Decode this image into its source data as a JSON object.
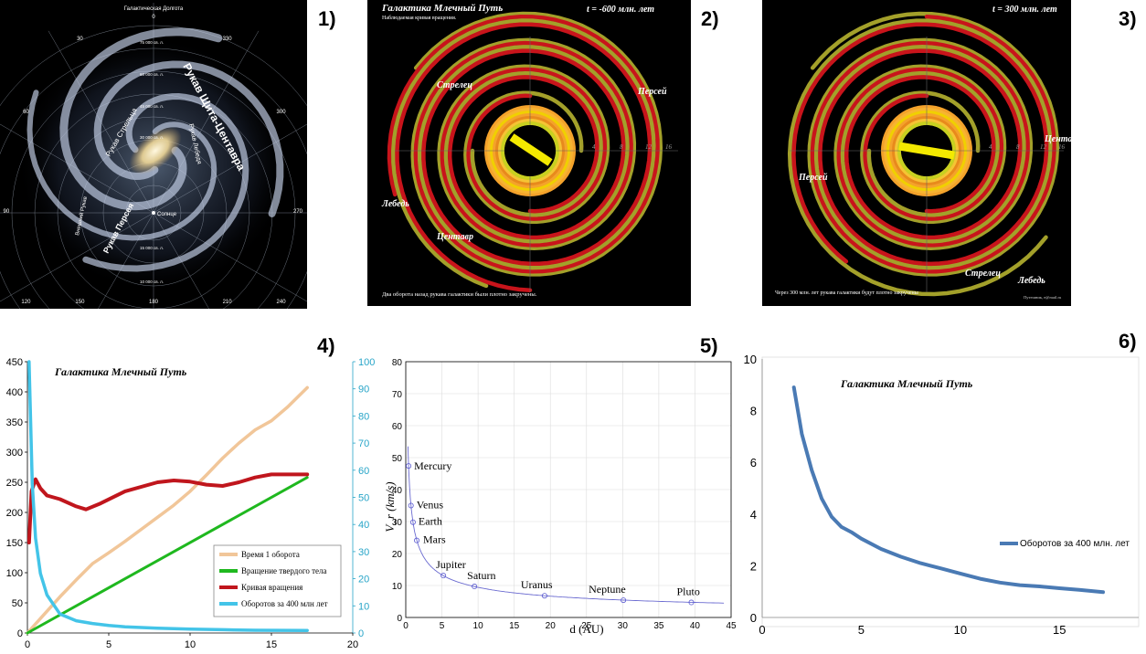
{
  "panel_numbers": [
    "1)",
    "2)",
    "3)",
    "4)",
    "5)",
    "6)"
  ],
  "panel1": {
    "title": "Галактическая Долгота",
    "longitudes": [
      "0",
      "30",
      "60",
      "90",
      "120",
      "150",
      "180",
      "210",
      "240",
      "270",
      "300",
      "330"
    ],
    "radii": [
      "75 000 св. л.",
      "60 000 св. л.",
      "45 000 св. л.",
      "30 000 св. л.",
      "15 000 св. л.",
      "10 000 св. л."
    ],
    "arms": [
      "Рукав Щита-Центавра",
      "Рукав Стрельца",
      "Рукав Лебедя",
      "Рукав Персея",
      "Внешний Рукав"
    ],
    "sun_label": "Солнце"
  },
  "panel2": {
    "title": "Галактика Млечный Путь",
    "subtitle": "Наблюдаемая кривая вращения.",
    "time": "t = -600 млн. лет",
    "labels": [
      "Стрелец",
      "Персей",
      "Лебедь",
      "Центавр"
    ],
    "caption": "Два оборота назад рукава галактики были плотно закручены.",
    "ticks": [
      "4",
      "8",
      "12",
      "16"
    ]
  },
  "panel3": {
    "time": "t = 300 млн. лет",
    "labels": [
      "Центавр",
      "Персей",
      "Стрелец",
      "Лебедь"
    ],
    "caption": "Через 300 млн. лет рукава галактики будут плотно закручены",
    "author": "Путешник, e@mail.ru",
    "ticks": [
      "4",
      "8",
      "12",
      "16"
    ]
  },
  "colors": {
    "olive": "#a3a02a",
    "red": "#c8141b",
    "orange": "#f4a22b",
    "yellow": "#f4ea00",
    "tan": "#f1c699",
    "green": "#1fb81f",
    "dark_red": "#c0161d",
    "cyan": "#43c4e8",
    "blue": "#4a7ab4",
    "axis_cyan": "#28a5c8"
  },
  "chart_data": [
    {
      "type": "line",
      "title": "Галактика Млечный Путь",
      "xlim": [
        0,
        20
      ],
      "ylim": [
        0,
        450
      ],
      "y2lim": [
        0,
        100
      ],
      "xticks": [
        "0",
        "5",
        "10",
        "15",
        "20"
      ],
      "yticks": [
        "0",
        "50",
        "100",
        "150",
        "200",
        "250",
        "300",
        "350",
        "400",
        "450"
      ],
      "y2ticks": [
        "0",
        "10",
        "20",
        "30",
        "40",
        "50",
        "60",
        "70",
        "80",
        "90",
        "100"
      ],
      "series": [
        {
          "name": "Время 1 оборота",
          "axis": "left",
          "x": [
            0,
            1,
            2,
            3,
            4,
            5,
            6,
            7,
            8,
            9,
            10,
            11,
            12,
            13,
            14,
            15,
            16,
            17.2
          ],
          "y": [
            0,
            30,
            60,
            88,
            115,
            133,
            152,
            172,
            192,
            212,
            235,
            262,
            290,
            315,
            337,
            352,
            375,
            407
          ]
        },
        {
          "name": "Вращение твердого тела",
          "axis": "left",
          "x": [
            0,
            17.2
          ],
          "y": [
            0,
            258
          ]
        },
        {
          "name": "Кривая вращения",
          "axis": "left",
          "x": [
            0.1,
            0.25,
            0.5,
            0.8,
            1.2,
            2,
            3,
            3.6,
            4.5,
            6,
            8,
            9,
            10,
            11,
            12,
            13,
            14,
            15,
            17.2
          ],
          "y": [
            150,
            235,
            255,
            240,
            228,
            222,
            210,
            205,
            215,
            235,
            250,
            253,
            251,
            246,
            244,
            250,
            258,
            263,
            263
          ]
        },
        {
          "name": "Оборотов за 400 млн лет",
          "axis": "right",
          "x": [
            0.1,
            0.3,
            0.5,
            0.8,
            1.2,
            2,
            3,
            4,
            5,
            6,
            8,
            10,
            12,
            14,
            17.2
          ],
          "y": [
            100,
            55,
            35,
            22,
            14,
            7,
            4.5,
            3.5,
            2.8,
            2.3,
            1.8,
            1.4,
            1.2,
            1.0,
            0.9
          ]
        }
      ]
    },
    {
      "type": "scatter",
      "xlabel": "d (AU)",
      "ylabel": "V_r (km/s)",
      "xlim": [
        0,
        45
      ],
      "ylim": [
        0,
        80
      ],
      "xticks": [
        "0",
        "5",
        "10",
        "15",
        "20",
        "25",
        "30",
        "35",
        "40",
        "45"
      ],
      "yticks": [
        "0",
        "10",
        "20",
        "30",
        "40",
        "50",
        "60",
        "70",
        "80"
      ],
      "points": [
        {
          "label": "Mercury",
          "x": 0.39,
          "y": 47.4
        },
        {
          "label": "Venus",
          "x": 0.72,
          "y": 35.0
        },
        {
          "label": "Earth",
          "x": 1.0,
          "y": 29.8
        },
        {
          "label": "Mars",
          "x": 1.52,
          "y": 24.1
        },
        {
          "label": "Jupiter",
          "x": 5.2,
          "y": 13.1
        },
        {
          "label": "Saturn",
          "x": 9.5,
          "y": 9.7
        },
        {
          "label": "Uranus",
          "x": 19.2,
          "y": 6.8
        },
        {
          "label": "Neptune",
          "x": 30.1,
          "y": 5.4
        },
        {
          "label": "Pluto",
          "x": 39.5,
          "y": 4.7
        }
      ]
    },
    {
      "type": "line",
      "title": "Галактика Млечный Путь",
      "xlim": [
        0,
        19
      ],
      "ylim": [
        0,
        10
      ],
      "xticks": [
        "0",
        "5",
        "10",
        "15"
      ],
      "yticks": [
        "0",
        "2",
        "4",
        "6",
        "8",
        "10"
      ],
      "series": [
        {
          "name": "Оборотов за 400 млн. лет",
          "x": [
            1.6,
            2,
            2.5,
            3,
            3.5,
            4,
            4.5,
            5,
            6,
            7,
            8,
            9,
            10,
            11,
            12,
            13,
            14,
            15,
            16,
            17.2
          ],
          "y": [
            8.9,
            7.1,
            5.7,
            4.6,
            3.9,
            3.5,
            3.3,
            3.05,
            2.65,
            2.35,
            2.1,
            1.9,
            1.7,
            1.5,
            1.35,
            1.25,
            1.2,
            1.13,
            1.07,
            0.98
          ]
        }
      ]
    }
  ]
}
